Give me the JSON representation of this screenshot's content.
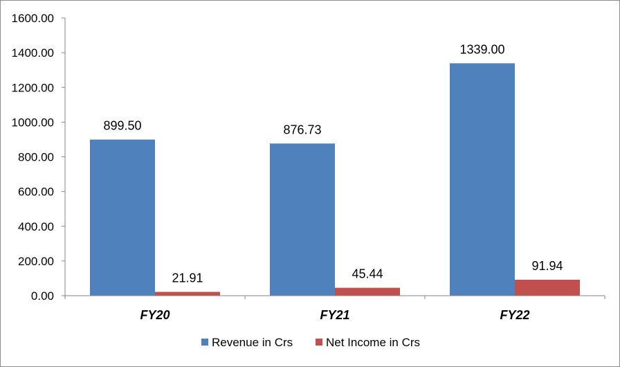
{
  "chart_data": {
    "type": "bar",
    "categories": [
      "FY20",
      "FY21",
      "FY22"
    ],
    "series": [
      {
        "name": "Revenue in Crs",
        "values": [
          899.5,
          876.73,
          1339.0
        ],
        "labels": [
          "899.50",
          "876.73",
          "1339.00"
        ],
        "color": "#4F81BD"
      },
      {
        "name": "Net Income in Crs",
        "values": [
          21.91,
          45.44,
          91.94
        ],
        "labels": [
          "21.91",
          "45.44",
          "91.94"
        ],
        "color": "#C0504D"
      }
    ],
    "ylim": [
      0,
      1600
    ],
    "yticks": [
      0,
      200,
      400,
      600,
      800,
      1000,
      1200,
      1400,
      1600
    ],
    "ytick_labels": [
      "0.00",
      "200.00",
      "400.00",
      "600.00",
      "800.00",
      "1000.00",
      "1200.00",
      "1400.00",
      "1600.00"
    ],
    "title": "",
    "xlabel": "",
    "ylabel": "",
    "grid": false,
    "legend_position": "bottom"
  }
}
